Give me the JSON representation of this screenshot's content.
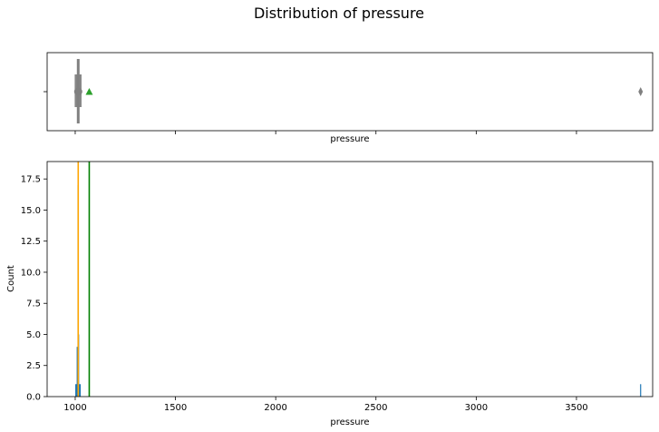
{
  "chart_data": [
    {
      "type": "box",
      "title": "Distribution of pressure",
      "xlabel": "pressure",
      "ylabel": "",
      "xlim": [
        860,
        3880
      ],
      "box": {
        "q1": 1011,
        "median": 1015,
        "q3": 1018,
        "whisker_low": 1005,
        "whisker_high": 1028,
        "mean": 1070,
        "outliers": [
          3820
        ]
      },
      "colors": {
        "box": "#808080",
        "mean_marker": "#2ca02c",
        "outlier": "#808080"
      },
      "grid": false
    },
    {
      "type": "histogram",
      "xlabel": "pressure",
      "ylabel": "Count",
      "xlim": [
        860,
        3880
      ],
      "ylim": [
        0,
        18.9
      ],
      "xticks": [
        1000,
        1500,
        2000,
        2500,
        3000,
        3500
      ],
      "xtick_labels": [
        "1000",
        "1500",
        "2000",
        "2500",
        "3000",
        "3500"
      ],
      "yticks": [
        0.0,
        2.5,
        5.0,
        7.5,
        10.0,
        12.5,
        15.0,
        17.5
      ],
      "ytick_labels": [
        "0.0",
        "2.5",
        "5.0",
        "7.5",
        "10.0",
        "12.5",
        "15.0",
        "17.5"
      ],
      "bins": [
        {
          "x": 1003,
          "count": 1
        },
        {
          "x": 1007,
          "count": 1
        },
        {
          "x": 1010,
          "count": 4
        },
        {
          "x": 1014,
          "count": 17
        },
        {
          "x": 1017,
          "count": 5
        },
        {
          "x": 1021,
          "count": 1
        },
        {
          "x": 1025,
          "count": 1
        },
        {
          "x": 3820,
          "count": 1
        }
      ],
      "median_line": 1015,
      "mean_line": 1070,
      "colors": {
        "bars": "#1f77b4",
        "median_line": "#ffa500",
        "mean_line": "#008000"
      },
      "grid": false
    }
  ]
}
